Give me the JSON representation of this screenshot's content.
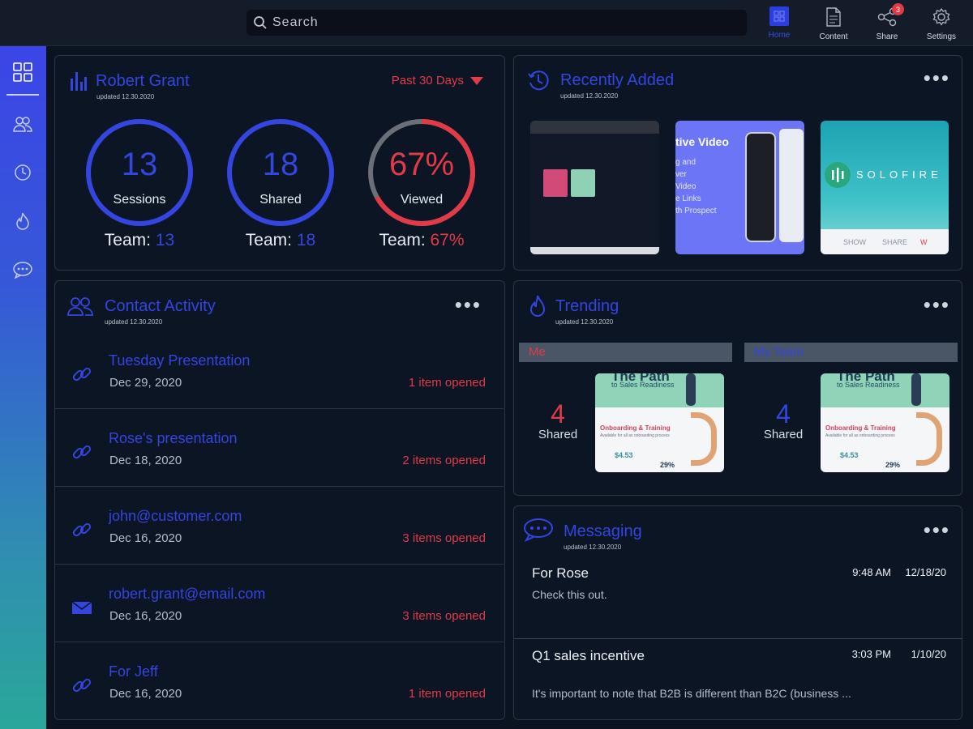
{
  "search": {
    "placeholder": "Search"
  },
  "nav": {
    "items": [
      {
        "label": "Home",
        "icon": "home-icon",
        "active": true
      },
      {
        "label": "Content",
        "icon": "document-icon"
      },
      {
        "label": "Share",
        "icon": "share-icon",
        "badge": "3"
      },
      {
        "label": "Settings",
        "icon": "gear-icon"
      }
    ]
  },
  "sidebar": {
    "items": [
      "dashboard-icon",
      "contacts-icon",
      "history-icon",
      "trending-icon",
      "messaging-icon"
    ]
  },
  "stats": {
    "title": "Robert Grant",
    "updated": "updated 12.30.2020",
    "period": "Past 30 Days",
    "items": [
      {
        "value": "13",
        "label": "Sessions",
        "team_label": "Team:",
        "team_value": "13",
        "fraction": 1.0
      },
      {
        "value": "18",
        "label": "Shared",
        "team_label": "Team:",
        "team_value": "18",
        "fraction": 1.0
      },
      {
        "value": "67%",
        "label": "Viewed",
        "team_label": "Team:",
        "team_value": "67%",
        "fraction": 0.67
      }
    ]
  },
  "recent": {
    "title": "Recently Added",
    "updated": "updated 12.30.2020",
    "thumb2_text": [
      "tive Video",
      "g and",
      "ver",
      "Video",
      "e Links",
      "th Prospect"
    ],
    "thumb3_brand": "SOLOFIRE",
    "thumb3_links": [
      "SHOW",
      "SHARE",
      "W"
    ]
  },
  "contacts": {
    "title": "Contact Activity",
    "updated": "updated 12.30.2020",
    "rows": [
      {
        "title": "Tuesday Presentation",
        "date": "Dec 29, 2020",
        "count": "1 item opened",
        "icon": "link-icon"
      },
      {
        "title": "Rose's presentation",
        "date": "Dec 18, 2020",
        "count": "2 items opened",
        "icon": "link-icon"
      },
      {
        "title": "john@customer.com",
        "date": "Dec 16, 2020",
        "count": "3 items opened",
        "icon": "link-icon"
      },
      {
        "title": "robert.grant@email.com",
        "date": "Dec 16, 2020",
        "count": "3 items opened",
        "icon": "email-icon"
      },
      {
        "title": "For Jeff",
        "date": "Dec 16, 2020",
        "count": "1 item opened",
        "icon": "link-icon"
      }
    ]
  },
  "trending": {
    "title": "Trending",
    "updated": "updated 12.30.2020",
    "columns": [
      {
        "header": "Me",
        "count": "4",
        "label": "Shared",
        "color": "#e23a46"
      },
      {
        "header": "My Team",
        "count": "4",
        "label": "Shared",
        "color": "#3445e0"
      }
    ],
    "thumb": {
      "headline": "The Path",
      "sub": "to Sales Readiness",
      "section": "Onboarding & Training",
      "section_sub": "Available for all as onboarding process",
      "price": "$4.53",
      "pct": "29%"
    }
  },
  "messaging": {
    "title": "Messaging",
    "updated": "updated 12.30.2020",
    "messages": [
      {
        "title": "For Rose",
        "time": "9:48 AM",
        "date": "12/18/20",
        "body": "Check this out."
      },
      {
        "title": "Q1 sales incentive",
        "time": "3:03 PM",
        "date": "1/10/20",
        "body": "It's important to note that B2B is different than B2C (business ..."
      }
    ]
  },
  "colors": {
    "accent": "#3445e0",
    "alert": "#e23a46",
    "card_bg": "#0c1524",
    "border": "#2c3648",
    "ring_track": "#6b6f77"
  }
}
